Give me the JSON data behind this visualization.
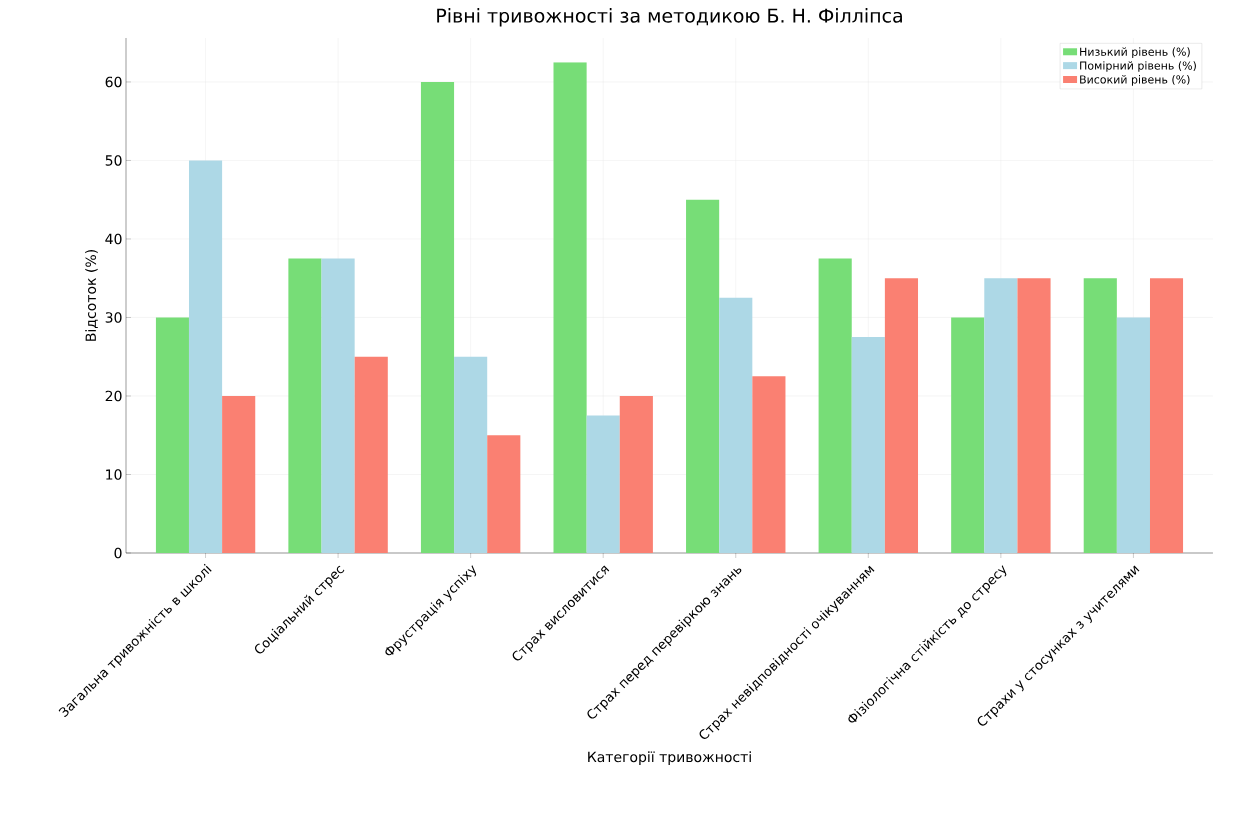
{
  "chart_data": {
    "type": "bar",
    "title": "Рівні тривожності за методикою Б. Н. Філліпса",
    "xlabel": "Категорії тривожності",
    "ylabel": "Відсоток (%)",
    "categories": [
      "Загальна тривожність в школі",
      "Соціальний стрес",
      "Фрустрація успіху",
      "Страх висловитися",
      "Страх перед перевіркою знань",
      "Страх невідповідності очікуванням",
      "Фізіологічна стійкість до стресу",
      "Страхи у стосунках з учителями"
    ],
    "series": [
      {
        "name": "Низький рівень (%)",
        "color": "#77dd77",
        "values": [
          30,
          37.5,
          60,
          62.5,
          45,
          37.5,
          30,
          35
        ]
      },
      {
        "name": "Помірний рівень (%)",
        "color": "#add8e6",
        "values": [
          50,
          37.5,
          25,
          17.5,
          32.5,
          27.5,
          35,
          30
        ]
      },
      {
        "name": "Високий рівень (%)",
        "color": "#fa8072",
        "values": [
          20,
          25,
          15,
          20,
          22.5,
          35,
          35,
          35
        ]
      }
    ],
    "ylim": [
      0,
      65.6
    ],
    "yticks": [
      0,
      10,
      20,
      30,
      40,
      50,
      60
    ],
    "grid": true,
    "legend": "top right"
  }
}
